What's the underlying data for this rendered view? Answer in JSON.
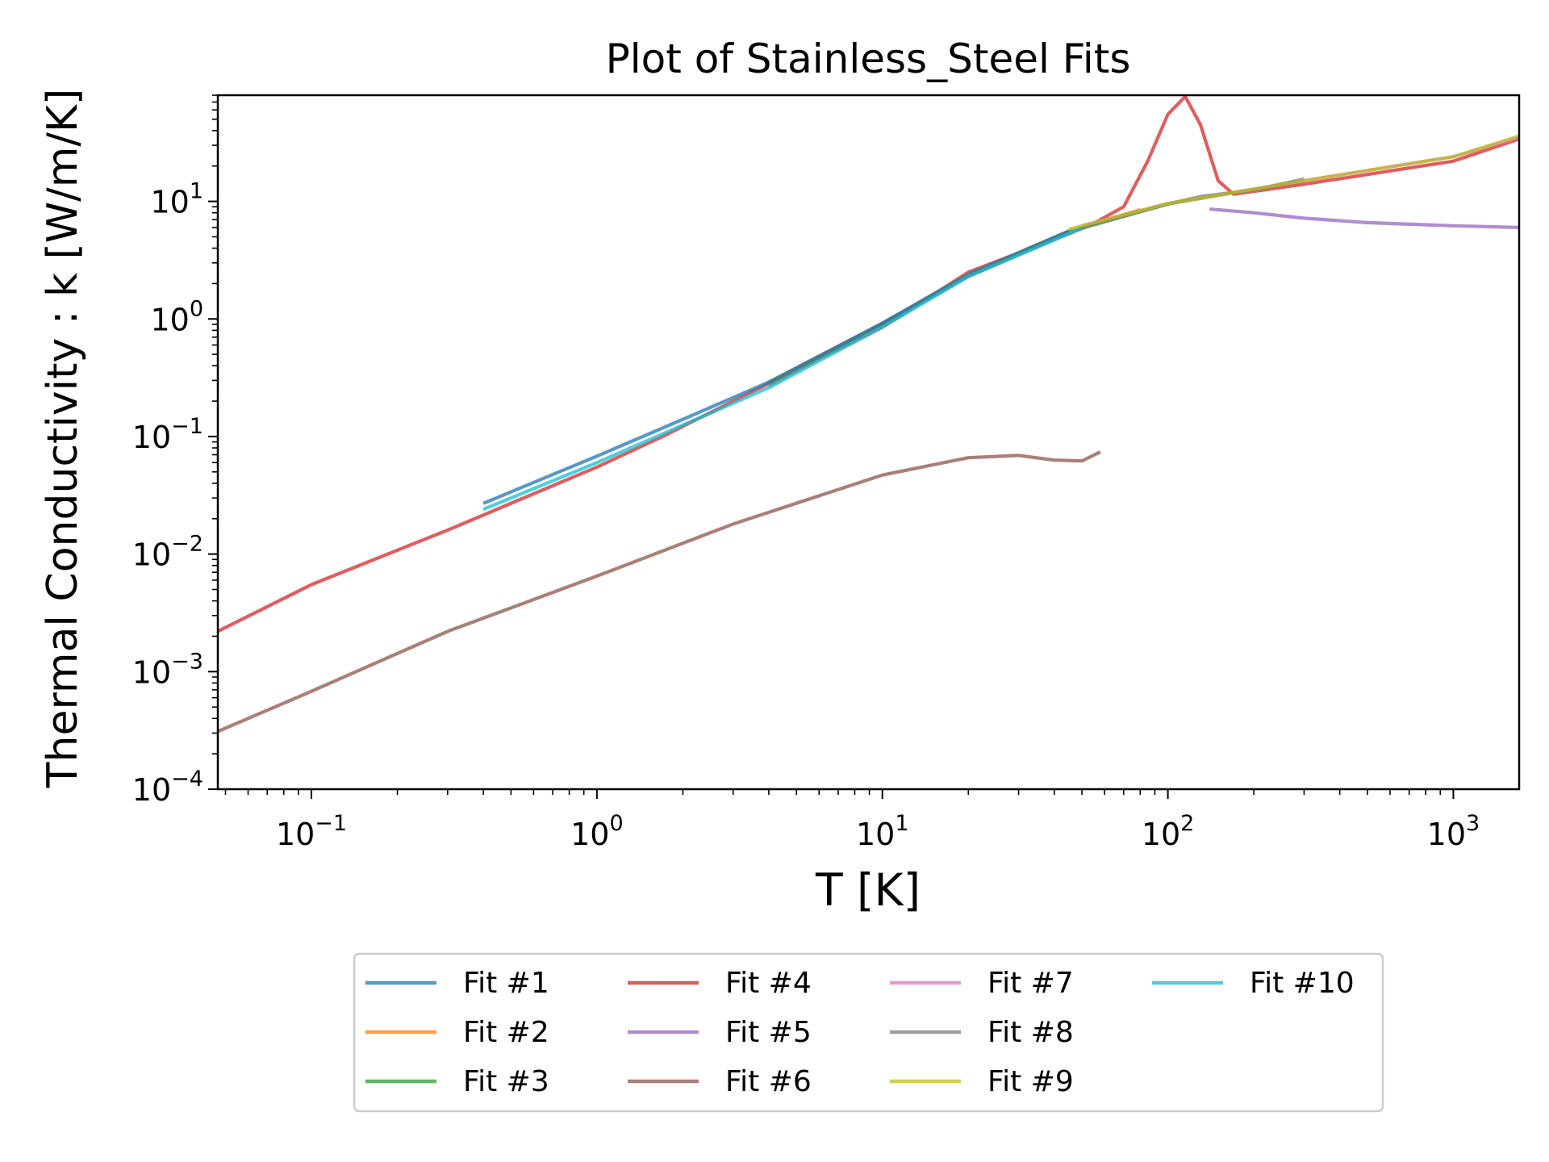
{
  "chart_data": {
    "type": "line",
    "title": "Plot of Stainless_Steel Fits",
    "xlabel": "T [K]",
    "ylabel": "Thermal Conductivity : k [W/m/K]",
    "xscale": "log",
    "yscale": "log",
    "xlim": [
      0.047,
      1700
    ],
    "ylim": [
      0.0001,
      80
    ],
    "x_ticks": [
      {
        "base": "10",
        "exp": "−1",
        "value": 0.1
      },
      {
        "base": "10",
        "exp": "0",
        "value": 1
      },
      {
        "base": "10",
        "exp": "1",
        "value": 10
      },
      {
        "base": "10",
        "exp": "2",
        "value": 100
      },
      {
        "base": "10",
        "exp": "3",
        "value": 1000
      }
    ],
    "y_ticks": [
      {
        "base": "10",
        "exp": "−4",
        "value": 0.0001
      },
      {
        "base": "10",
        "exp": "−3",
        "value": 0.001
      },
      {
        "base": "10",
        "exp": "−2",
        "value": 0.01
      },
      {
        "base": "10",
        "exp": "−1",
        "value": 0.1
      },
      {
        "base": "10",
        "exp": "0",
        "value": 1
      },
      {
        "base": "10",
        "exp": "1",
        "value": 10
      }
    ],
    "grid": false,
    "legend_position": "bottom-center",
    "legend_columns": 4,
    "series": [
      {
        "name": "Fit #1",
        "color": "#1f77b4",
        "x": [
          0.4,
          1,
          2,
          4,
          10,
          20,
          45
        ],
        "y": [
          0.027,
          0.068,
          0.14,
          0.29,
          0.92,
          2.4,
          5.6
        ]
      },
      {
        "name": "Fit #2",
        "color": "#ff7f0e",
        "x": [
          4,
          10,
          20,
          45,
          80
        ],
        "y": [
          0.29,
          0.92,
          2.4,
          5.6,
          8.5
        ]
      },
      {
        "name": "Fit #3",
        "color": "#2ca02c",
        "x": [
          4,
          10,
          20,
          45,
          100,
          300
        ],
        "y": [
          0.28,
          0.9,
          2.3,
          5.5,
          9.5,
          15
        ]
      },
      {
        "name": "Fit #4",
        "color": "#d62728",
        "x": [
          0.047,
          0.1,
          0.3,
          1,
          1.7,
          3,
          10,
          20,
          45,
          55,
          70,
          85,
          100,
          115,
          130,
          150,
          170,
          300,
          1000,
          1700
        ],
        "y": [
          0.0022,
          0.0055,
          0.016,
          0.055,
          0.1,
          0.2,
          0.85,
          2.5,
          5.3,
          6.5,
          9,
          22,
          55,
          78,
          45,
          15,
          11.5,
          14,
          22,
          34
        ]
      },
      {
        "name": "Fit #5",
        "color": "#9467bd",
        "x": [
          140,
          200,
          300,
          500,
          1000,
          1700
        ],
        "y": [
          8.6,
          8,
          7.2,
          6.6,
          6.2,
          6
        ]
      },
      {
        "name": "Fit #6",
        "color": "#8c564b",
        "x": [
          0.047,
          0.1,
          0.3,
          1,
          3,
          10,
          20,
          30,
          40,
          50,
          58
        ],
        "y": [
          0.00031,
          0.00068,
          0.0022,
          0.0065,
          0.018,
          0.047,
          0.066,
          0.069,
          0.063,
          0.062,
          0.074
        ]
      },
      {
        "name": "Fit #7",
        "color": "#e377c2",
        "x": [
          50,
          100,
          300,
          1000,
          1700
        ],
        "y": [
          6.2,
          9.6,
          15,
          24,
          35
        ]
      },
      {
        "name": "Fit #8",
        "color": "#7f7f7f",
        "x": [
          4,
          10,
          20,
          30,
          50,
          100,
          130,
          200,
          300
        ],
        "y": [
          0.27,
          0.9,
          2.3,
          3.5,
          6,
          9.5,
          11,
          12.5,
          15.5
        ]
      },
      {
        "name": "Fit #9",
        "color": "#bcbd22",
        "x": [
          45,
          100,
          300,
          1000,
          1700
        ],
        "y": [
          5.8,
          9.6,
          15,
          24,
          36
        ]
      },
      {
        "name": "Fit #10",
        "color": "#17becf",
        "x": [
          0.4,
          1,
          2,
          4,
          10,
          20,
          45,
          50
        ],
        "y": [
          0.024,
          0.06,
          0.125,
          0.26,
          0.85,
          2.3,
          5.3,
          5.9
        ]
      }
    ]
  }
}
